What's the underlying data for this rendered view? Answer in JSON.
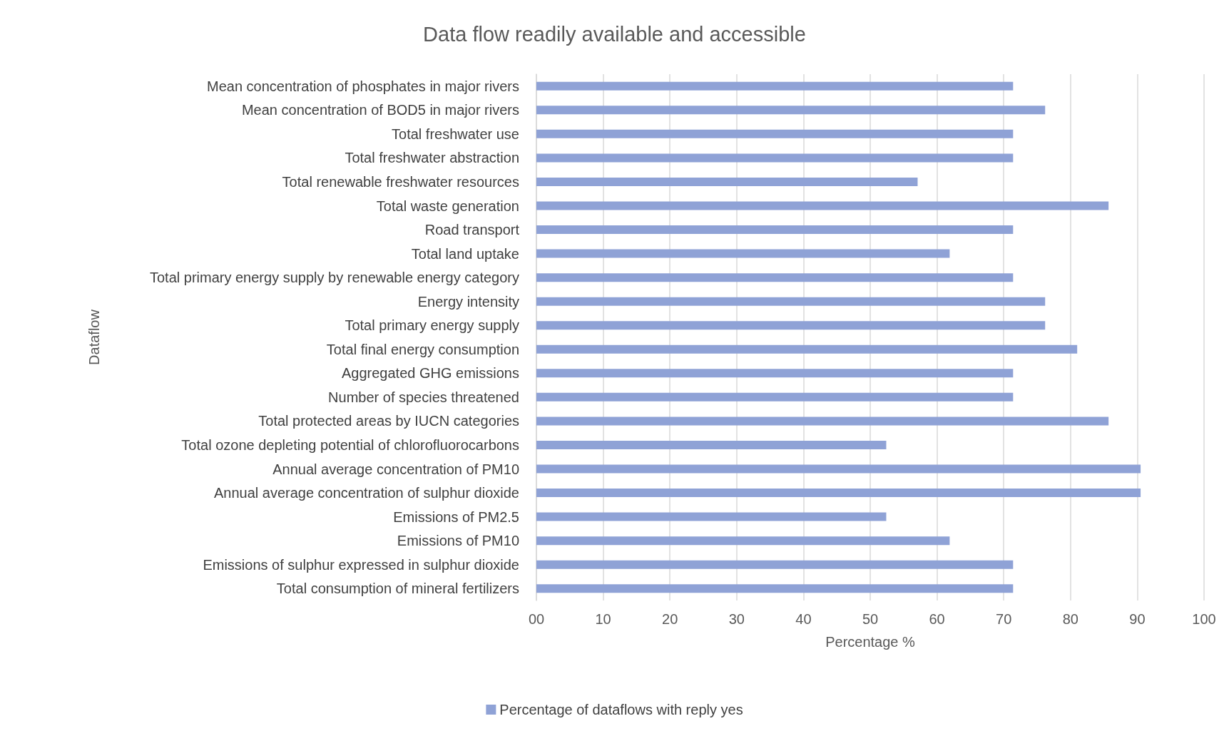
{
  "chart_data": {
    "type": "bar",
    "orientation": "horizontal",
    "title": "Data flow readily available and accessible",
    "xlabel": "Percentage %",
    "ylabel": "Dataflow",
    "categories": [
      "Mean concentration of phosphates in major rivers",
      "Mean concentration of BOD5 in major rivers",
      "Total freshwater use",
      "Total freshwater abstraction",
      "Total renewable freshwater resources",
      "Total waste generation",
      "Road transport",
      "Total land uptake",
      "Total primary energy supply by renewable energy category",
      "Energy intensity",
      "Total primary energy supply",
      "Total final energy consumption",
      "Aggregated GHG emissions",
      "Number of species threatened",
      "Total protected areas by IUCN categories",
      "Total ozone depleting potential of chlorofluorocarbons",
      "Annual average concentration of PM10",
      "Annual average concentration of sulphur dioxide",
      "Emissions of PM2.5",
      "Emissions of PM10",
      "Emissions of sulphur expressed in sulphur dioxide",
      "Total consumption of mineral fertilizers"
    ],
    "series": [
      {
        "name": "Percentage of dataflows with reply yes",
        "color": "#8fa2d6",
        "values": [
          71.4,
          76.2,
          71.4,
          71.4,
          57.1,
          85.7,
          71.4,
          61.9,
          71.4,
          76.2,
          76.2,
          81.0,
          71.4,
          71.4,
          85.7,
          52.4,
          90.5,
          90.5,
          52.4,
          61.9,
          71.4,
          71.4
        ]
      }
    ],
    "xlim": [
      0,
      100
    ],
    "xticks": [
      {
        "value": 0,
        "label": "00"
      },
      10,
      20,
      30,
      40,
      50,
      60,
      70,
      80,
      90,
      100
    ],
    "grid": "x",
    "legend": "bottom"
  }
}
